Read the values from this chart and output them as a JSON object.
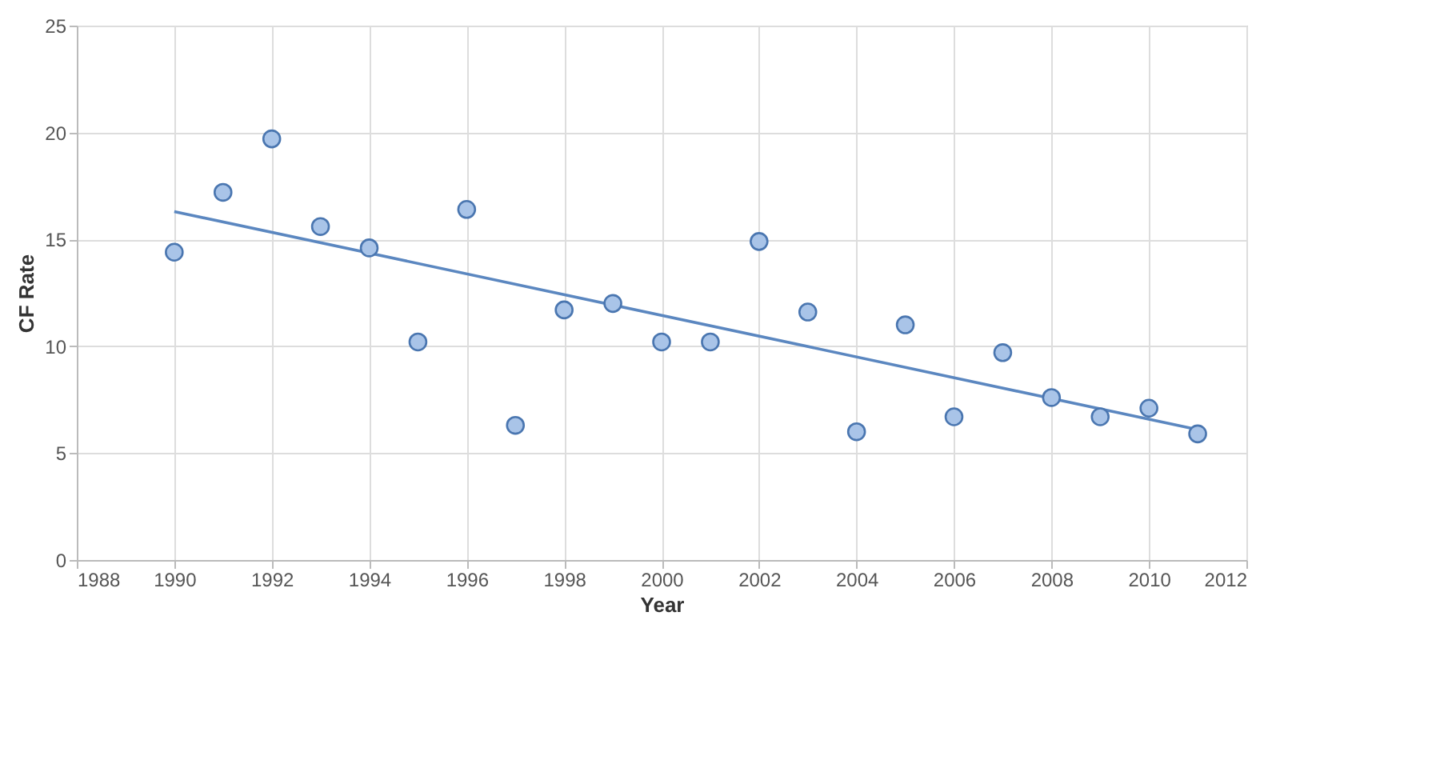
{
  "chart_data": {
    "type": "scatter",
    "xlabel": "Year",
    "ylabel": "CF Rate",
    "x": [
      1990,
      1991,
      1992,
      1993,
      1994,
      1995,
      1996,
      1997,
      1998,
      1999,
      2000,
      2001,
      2002,
      2003,
      2004,
      2005,
      2006,
      2007,
      2008,
      2009,
      2010,
      2011
    ],
    "series": [
      {
        "color": "#a9c4e8",
        "marker": "circle",
        "values": [
          14.4,
          17.2,
          19.7,
          15.6,
          14.6,
          10.2,
          16.4,
          6.3,
          11.7,
          12.0,
          10.2,
          10.2,
          14.9,
          11.6,
          6.0,
          11.0,
          6.7,
          9.7,
          7.6,
          6.7,
          7.1,
          5.9
        ]
      },
      {
        "type": "line",
        "color": "#5b87c0",
        "x": [
          1990,
          2011
        ],
        "values": [
          16.3,
          6.1
        ]
      }
    ],
    "xlim": [
      1988,
      2012
    ],
    "xticks": [
      1988,
      1990,
      1992,
      1994,
      1996,
      1998,
      2000,
      2002,
      2004,
      2006,
      2008,
      2010,
      2012
    ],
    "ylim": [
      0,
      25
    ],
    "yticks": [
      0,
      5,
      10,
      15,
      20,
      25
    ],
    "grid": true
  }
}
